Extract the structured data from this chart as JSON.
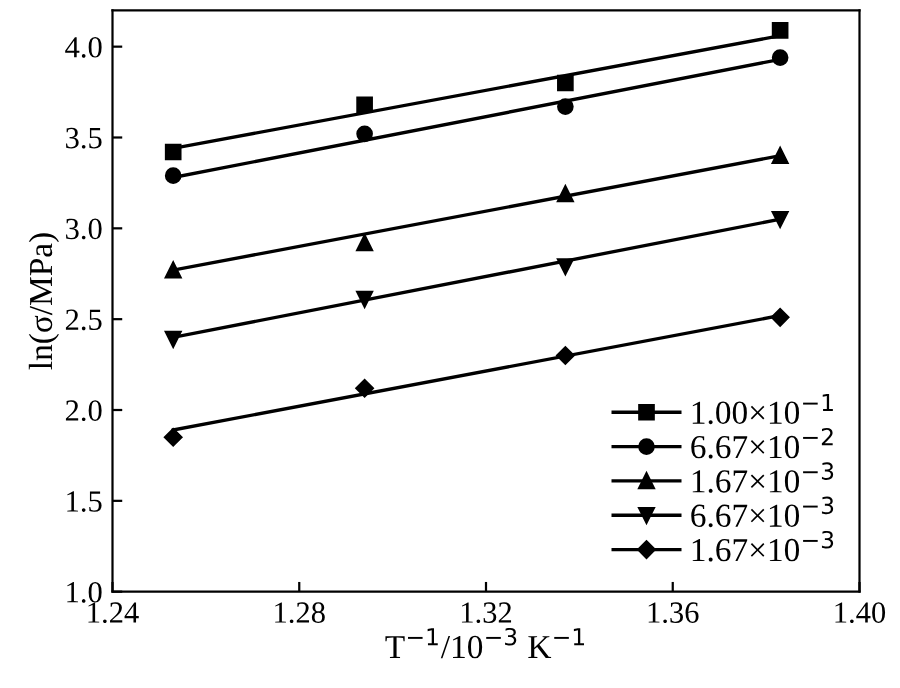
{
  "chart_data": {
    "type": "scatter",
    "xlabel": "T$^{−1}$/10$^{−3}$ K$^{−1}$",
    "ylabel": "ln(σ/MPa)",
    "xlim": [
      1.24,
      1.4
    ],
    "ylim": [
      1.0,
      4.2
    ],
    "xticks": [
      1.24,
      1.28,
      1.32,
      1.36,
      {
        "value": 1.4,
        "label": "1.40"
      }
    ],
    "yticks": [
      {
        "value": 1,
        "label": "1.0"
      },
      1.5,
      {
        "value": 2,
        "label": "2.0"
      },
      2.5,
      {
        "value": 3,
        "label": "3.0"
      },
      3.5,
      {
        "value": 4,
        "label": "4.0"
      }
    ],
    "grid": false,
    "legend": "bottom right",
    "series": [
      {
        "name": "1.00×10$^{−1}$",
        "color": "#000000",
        "marker": "square",
        "x": [
          1.253,
          1.294,
          1.337,
          1.383
        ],
        "values": [
          3.42,
          3.68,
          3.8,
          4.09
        ]
      },
      {
        "name": "6.67×10$^{−2}$",
        "color": "#000000",
        "marker": "circle",
        "x": [
          1.253,
          1.294,
          1.337,
          1.383
        ],
        "values": [
          3.29,
          3.52,
          3.67,
          3.94
        ]
      },
      {
        "name": "1.67×10$^{−3}$",
        "color": "#000000",
        "marker": "triangle",
        "x": [
          1.253,
          1.294,
          1.337,
          1.383
        ],
        "values": [
          2.77,
          2.92,
          3.19,
          3.4
        ]
      },
      {
        "name": "6.67×10$^{−3}$",
        "color": "#000000",
        "marker": "triangle_down",
        "x": [
          1.253,
          1.294,
          1.337,
          1.383
        ],
        "values": [
          2.39,
          2.61,
          2.79,
          3.05
        ]
      },
      {
        "name": "1.67×10$^{−3}$",
        "color": "#000000",
        "marker": "diamond",
        "x": [
          1.253,
          1.294,
          1.337,
          1.383
        ],
        "values": [
          1.85,
          2.12,
          2.3,
          2.51
        ]
      },
      {
        "type": "line",
        "color": "#000000",
        "line_style": "solid",
        "x": [
          1.253,
          1.383
        ],
        "values": [
          3.44,
          4.06
        ]
      },
      {
        "type": "line",
        "color": "#000000",
        "line_style": "solid",
        "x": [
          1.253,
          1.383
        ],
        "values": [
          3.28,
          3.93
        ]
      },
      {
        "type": "line",
        "color": "#000000",
        "line_style": "solid",
        "x": [
          1.253,
          1.383
        ],
        "values": [
          2.77,
          3.4
        ]
      },
      {
        "type": "line",
        "color": "#000000",
        "line_style": "solid",
        "x": [
          1.253,
          1.383
        ],
        "values": [
          2.4,
          3.05
        ]
      },
      {
        "type": "line",
        "color": "#000000",
        "line_style": "solid",
        "x": [
          1.253,
          1.383
        ],
        "values": [
          1.89,
          2.52
        ]
      }
    ]
  }
}
